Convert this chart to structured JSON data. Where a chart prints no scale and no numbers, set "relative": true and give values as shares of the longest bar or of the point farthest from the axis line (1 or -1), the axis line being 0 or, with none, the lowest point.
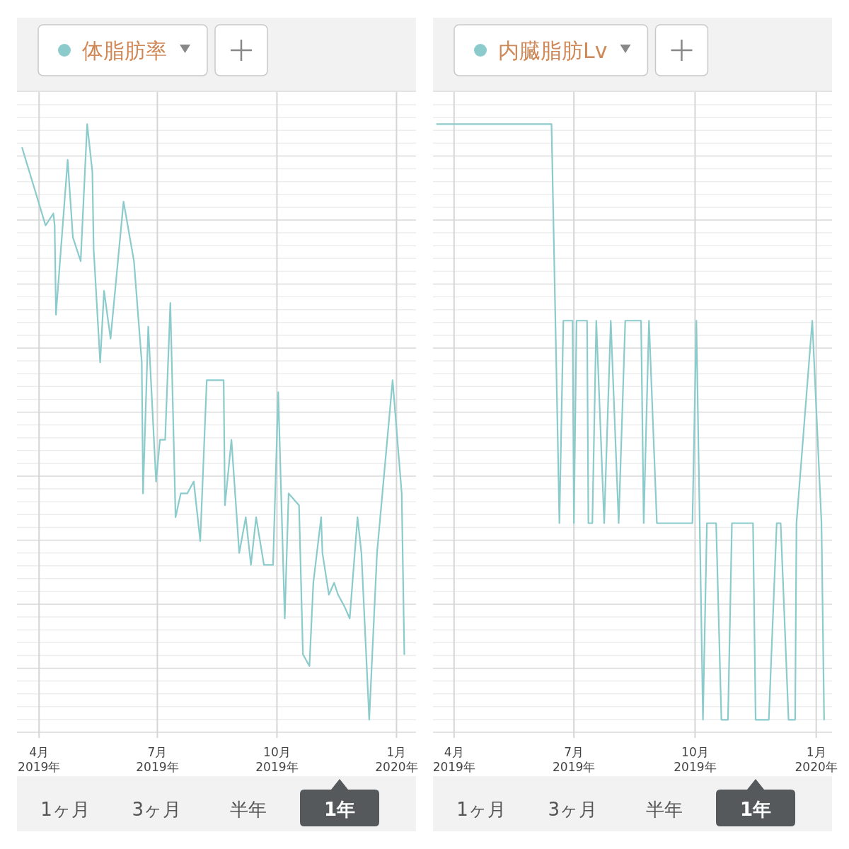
{
  "chart_data": [
    {
      "type": "line",
      "relative": true,
      "grid": true,
      "legend": "top left",
      "x": [
        "2019-03-19",
        "2019-04-06",
        "2019-04-12",
        "2019-04-13",
        "2019-04-14",
        "2019-04-23",
        "2019-04-27",
        "2019-05-03",
        "2019-05-08",
        "2019-05-12",
        "2019-05-13",
        "2019-05-18",
        "2019-05-21",
        "2019-05-26",
        "2019-06-05",
        "2019-06-13",
        "2019-06-19",
        "2019-06-20",
        "2019-06-24",
        "2019-06-30",
        "2019-07-03",
        "2019-07-07",
        "2019-07-11",
        "2019-07-15",
        "2019-07-19",
        "2019-07-24",
        "2019-07-29",
        "2019-08-03",
        "2019-08-08",
        "2019-08-21",
        "2019-08-22",
        "2019-08-27",
        "2019-09-02",
        "2019-09-07",
        "2019-09-11",
        "2019-09-15",
        "2019-09-21",
        "2019-09-28",
        "2019-10-02",
        "2019-10-07",
        "2019-10-10",
        "2019-10-18",
        "2019-10-21",
        "2019-10-26",
        "2019-10-29",
        "2019-11-04",
        "2019-11-05",
        "2019-11-10",
        "2019-11-14",
        "2019-11-17",
        "2019-11-22",
        "2019-11-26",
        "2019-12-02",
        "2019-12-05",
        "2019-12-11",
        "2019-12-17",
        "2019-12-29",
        "2020-01-05",
        "2020-01-07"
      ],
      "series": [
        {
          "name": "体脂肪率",
          "color": "#8ccbcc",
          "values": [
            0.96,
            0.83,
            0.85,
            0.83,
            0.68,
            0.94,
            0.81,
            0.77,
            1.0,
            0.92,
            0.79,
            0.6,
            0.72,
            0.64,
            0.87,
            0.77,
            0.6,
            0.38,
            0.66,
            0.4,
            0.47,
            0.47,
            0.7,
            0.34,
            0.38,
            0.38,
            0.4,
            0.3,
            0.57,
            0.57,
            0.36,
            0.47,
            0.28,
            0.34,
            0.26,
            0.34,
            0.26,
            0.26,
            0.55,
            0.17,
            0.38,
            0.36,
            0.11,
            0.09,
            0.23,
            0.34,
            0.28,
            0.21,
            0.23,
            0.21,
            0.19,
            0.17,
            0.34,
            0.28,
            0,
            0.28,
            0.57,
            0.38,
            0.11
          ]
        }
      ],
      "xlim": [
        "2019-03-15",
        "2020-01-16"
      ],
      "xticks": [
        {
          "value": "2019-04-01",
          "label": "4月\n2019年"
        },
        {
          "value": "2019-07-01",
          "label": "7月\n2019年"
        },
        {
          "value": "2019-10-01",
          "label": "10月\n2019年"
        },
        {
          "value": "2020-01-01",
          "label": "1月\n2020年"
        }
      ],
      "annotations": [
        "1ヶ月",
        "3ヶ月",
        "半年",
        "1年"
      ]
    },
    {
      "type": "line",
      "relative": true,
      "grid": true,
      "legend": "top left",
      "x": [
        "2019-03-19",
        "2019-06-14",
        "2019-06-20",
        "2019-06-23",
        "2019-06-30",
        "2019-07-01",
        "2019-07-03",
        "2019-07-11",
        "2019-07-12",
        "2019-07-15",
        "2019-07-18",
        "2019-07-24",
        "2019-07-29",
        "2019-08-04",
        "2019-08-09",
        "2019-08-21",
        "2019-08-23",
        "2019-08-27",
        "2019-09-02",
        "2019-09-29",
        "2019-10-02",
        "2019-10-07",
        "2019-10-10",
        "2019-10-17",
        "2019-10-21",
        "2019-10-26",
        "2019-10-29",
        "2019-11-14",
        "2019-11-16",
        "2019-11-26",
        "2019-12-02",
        "2019-12-05",
        "2019-12-11",
        "2019-12-16",
        "2019-12-17",
        "2019-12-29",
        "2020-01-05",
        "2020-01-07"
      ],
      "series": [
        {
          "name": "内臓脂肪Lv",
          "color": "#8ccbcc",
          "values": [
            1,
            1,
            0.33,
            0.67,
            0.67,
            0.33,
            0.67,
            0.67,
            0.33,
            0.33,
            0.67,
            0.33,
            0.67,
            0.33,
            0.67,
            0.67,
            0.33,
            0.67,
            0.33,
            0.33,
            0.67,
            0,
            0.33,
            0.33,
            0,
            0,
            0.33,
            0.33,
            0,
            0,
            0.33,
            0.33,
            0,
            0,
            0.33,
            0.67,
            0.33,
            0
          ]
        }
      ],
      "xlim": [
        "2019-03-16",
        "2020-01-13"
      ],
      "xticks": [
        {
          "value": "2019-04-01",
          "label": "4月\n2019年"
        },
        {
          "value": "2019-07-01",
          "label": "7月\n2019年"
        },
        {
          "value": "2019-10-01",
          "label": "10月\n2019年"
        },
        {
          "value": "2020-01-01",
          "label": "1月\n2020年"
        }
      ],
      "annotations": [
        "1ヶ月",
        "3ヶ月",
        "半年",
        "1年"
      ]
    }
  ]
}
